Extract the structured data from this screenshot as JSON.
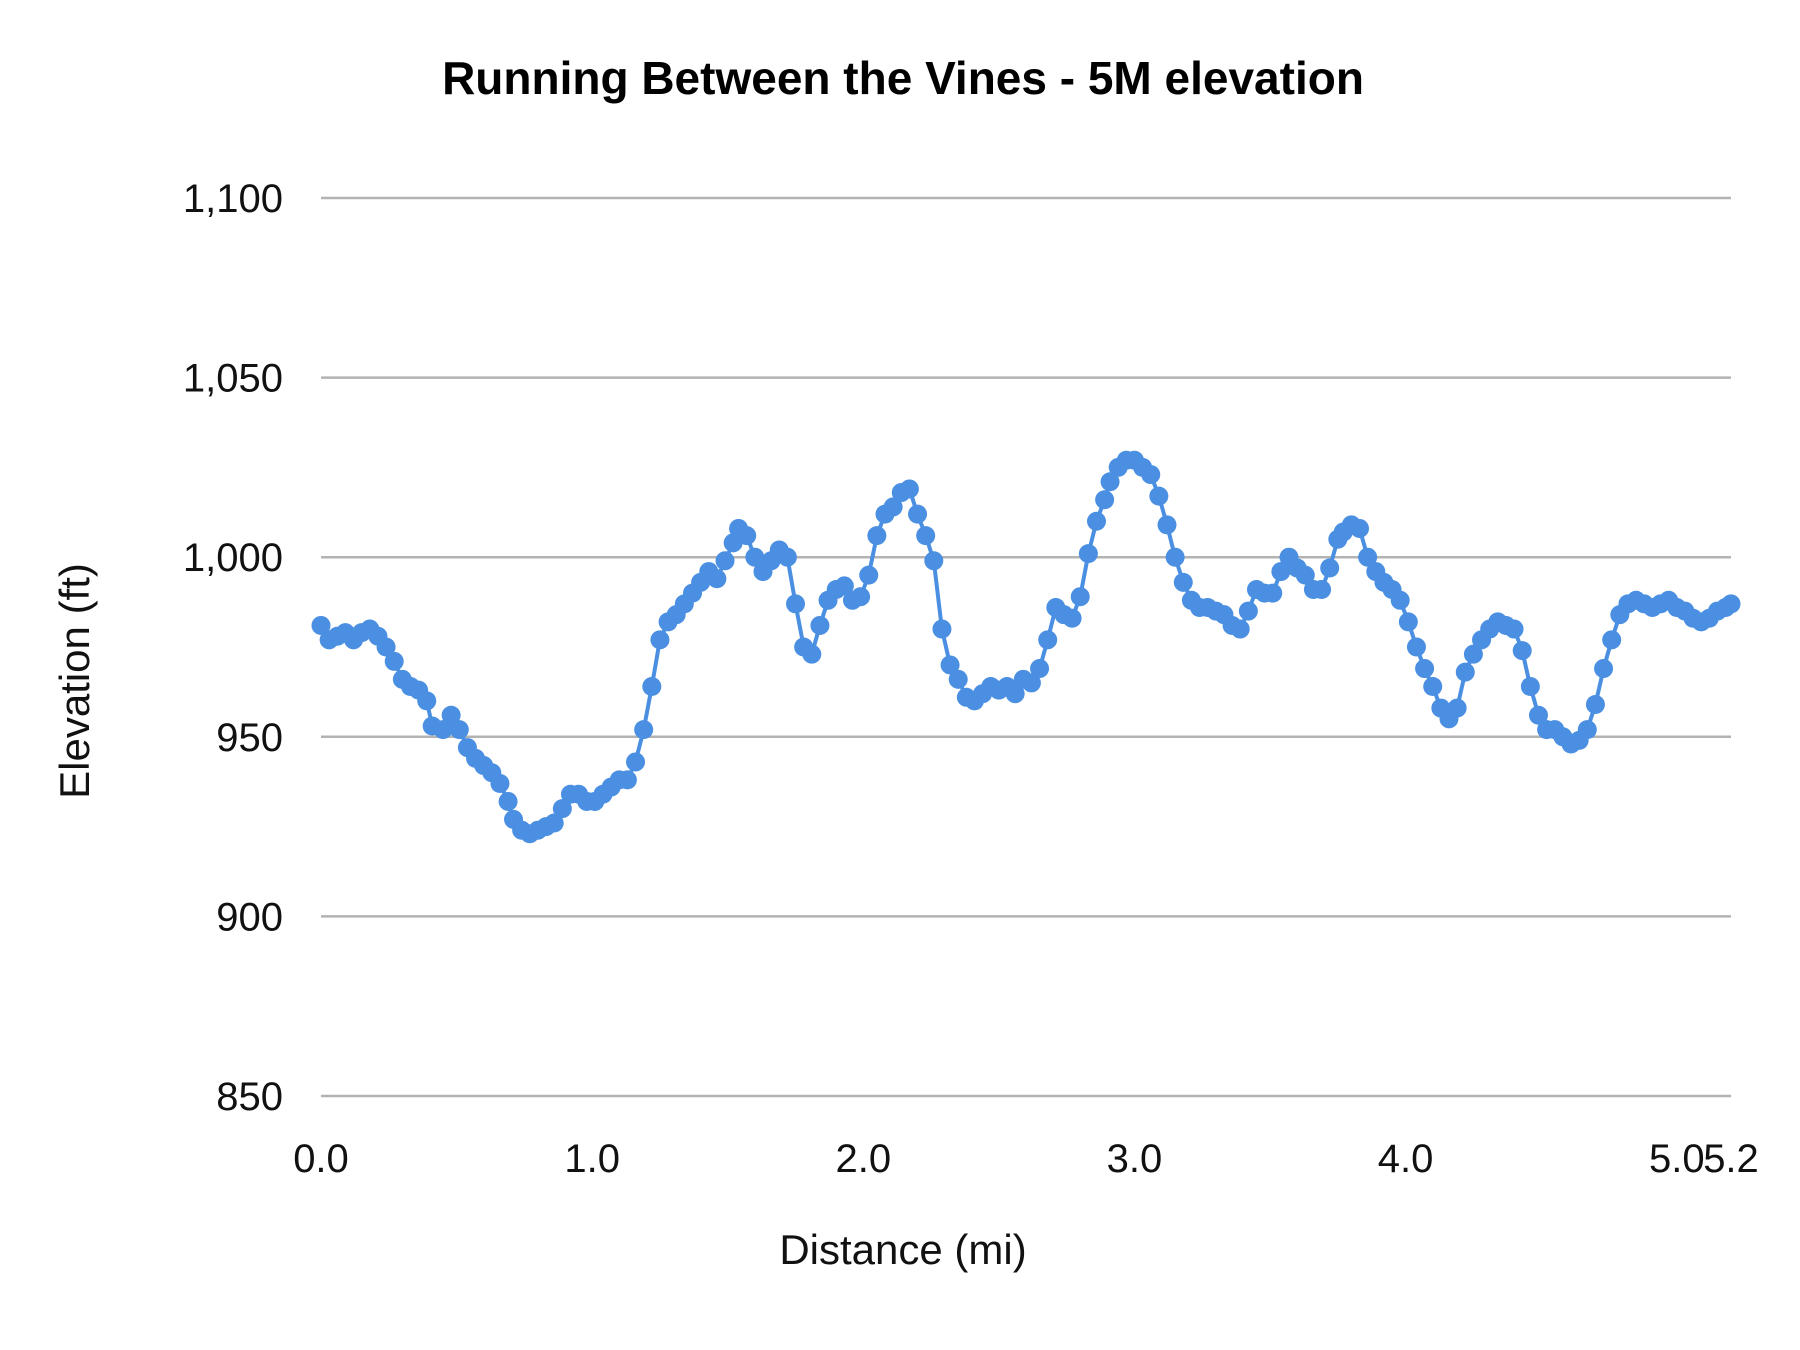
{
  "chart_data": {
    "type": "line",
    "title": "Running Between the Vines - 5M elevation",
    "xlabel": "Distance (mi)",
    "ylabel": "Elevation (ft)",
    "xlim": [
      0,
      5.2
    ],
    "ylim": [
      850,
      1100
    ],
    "x_ticks": [
      0,
      1,
      2,
      3,
      4,
      5,
      5.2
    ],
    "x_tick_labels": [
      "0.0",
      "1.0",
      "2.0",
      "3.0",
      "4.0",
      "5.0",
      "5.2"
    ],
    "y_ticks": [
      850,
      900,
      950,
      1000,
      1050,
      1100
    ],
    "y_tick_labels": [
      "850",
      "900",
      "950",
      "1,000",
      "1,050",
      "1,100"
    ],
    "grid": "horizontal",
    "markers": true,
    "color": "#4a8fe2",
    "series": [
      {
        "x": [
          0.0,
          0.03,
          0.06,
          0.09,
          0.12,
          0.15,
          0.18,
          0.21,
          0.24,
          0.27,
          0.3,
          0.33,
          0.36,
          0.39,
          0.41,
          0.45,
          0.48,
          0.51,
          0.54,
          0.57,
          0.6,
          0.63,
          0.66,
          0.69,
          0.71,
          0.74,
          0.77,
          0.8,
          0.83,
          0.86,
          0.89,
          0.92,
          0.95,
          0.98,
          1.01,
          1.04,
          1.07,
          1.1,
          1.13,
          1.16,
          1.19,
          1.22,
          1.25,
          1.28,
          1.31,
          1.34,
          1.37,
          1.4,
          1.43,
          1.46,
          1.49,
          1.52,
          1.54,
          1.57,
          1.6,
          1.63,
          1.66,
          1.69,
          1.72,
          1.75,
          1.78,
          1.81,
          1.84,
          1.87,
          1.9,
          1.93,
          1.96,
          1.99,
          2.02,
          2.05,
          2.08,
          2.11,
          2.14,
          2.17,
          2.2,
          2.23,
          2.26,
          2.29,
          2.32,
          2.35,
          2.38,
          2.41,
          2.44,
          2.47,
          2.5,
          2.53,
          2.56,
          2.59,
          2.62,
          2.65,
          2.68,
          2.71,
          2.74,
          2.77,
          2.8,
          2.83,
          2.86,
          2.89,
          2.91,
          2.94,
          2.97,
          3.0,
          3.03,
          3.06,
          3.09,
          3.12,
          3.15,
          3.18,
          3.21,
          3.24,
          3.27,
          3.3,
          3.33,
          3.36,
          3.39,
          3.42,
          3.45,
          3.48,
          3.51,
          3.54,
          3.57,
          3.6,
          3.63,
          3.66,
          3.69,
          3.72,
          3.75,
          3.77,
          3.8,
          3.83,
          3.86,
          3.89,
          3.92,
          3.95,
          3.98,
          4.01,
          4.04,
          4.07,
          4.1,
          4.13,
          4.16,
          4.19,
          4.22,
          4.25,
          4.28,
          4.31,
          4.34,
          4.37,
          4.4,
          4.43,
          4.46,
          4.49,
          4.52,
          4.55,
          4.58,
          4.61,
          4.64,
          4.67,
          4.7,
          4.73,
          4.76,
          4.79,
          4.82,
          4.85,
          4.88,
          4.91,
          4.94,
          4.97,
          5.0,
          5.03,
          5.06,
          5.09,
          5.12,
          5.15,
          5.18,
          5.2
        ],
        "y": [
          981,
          977,
          978,
          979,
          977,
          979,
          980,
          978,
          975,
          971,
          966,
          964,
          963,
          960,
          953,
          952,
          956,
          952,
          947,
          944,
          942,
          940,
          937,
          932,
          927,
          924,
          923,
          924,
          925,
          926,
          930,
          934,
          934,
          932,
          932,
          934,
          936,
          938,
          938,
          943,
          952,
          964,
          977,
          982,
          984,
          987,
          990,
          993,
          996,
          994,
          999,
          1004,
          1008,
          1006,
          1000,
          996,
          999,
          1002,
          1000,
          987,
          975,
          973,
          981,
          988,
          991,
          992,
          988,
          989,
          995,
          1006,
          1012,
          1014,
          1018,
          1019,
          1012,
          1006,
          999,
          980,
          970,
          966,
          961,
          960,
          962,
          964,
          963,
          964,
          962,
          966,
          965,
          969,
          977,
          986,
          984,
          983,
          989,
          1001,
          1010,
          1016,
          1021,
          1025,
          1027,
          1027,
          1025,
          1023,
          1017,
          1009,
          1000,
          993,
          988,
          986,
          986,
          985,
          984,
          981,
          980,
          985,
          991,
          990,
          990,
          996,
          1000,
          997,
          995,
          991,
          991,
          997,
          1005,
          1007,
          1009,
          1008,
          1000,
          996,
          993,
          991,
          988,
          982,
          975,
          969,
          964,
          958,
          955,
          958,
          968,
          973,
          977,
          980,
          982,
          981,
          980,
          974,
          964,
          956,
          952,
          952,
          950,
          948,
          949,
          952,
          959,
          969,
          977,
          984,
          987,
          988,
          987,
          986,
          987,
          988,
          986,
          985,
          983,
          982,
          983,
          985,
          986,
          987
        ]
      }
    ]
  }
}
